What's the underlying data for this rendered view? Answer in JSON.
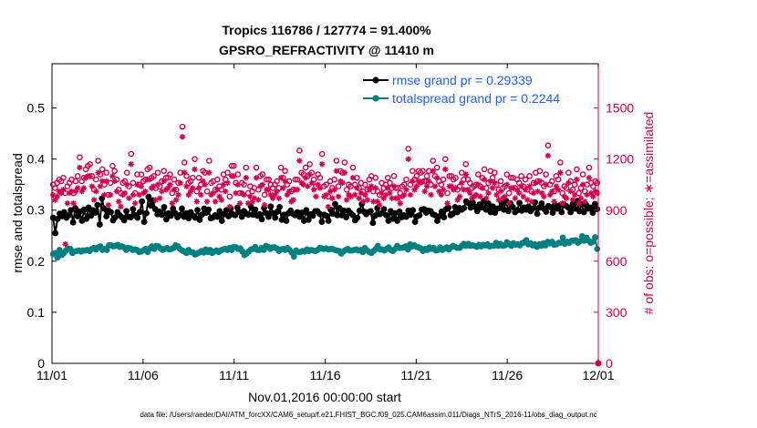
{
  "chart_data": {
    "type": "line",
    "title": "Tropics 116786 / 127774 = 91.400%",
    "subtitle": "GPSRO_REFRACTIVITY @ 11410 m",
    "xlabel": "Nov.01,2016 00:00:00 start",
    "ylabel": "rmse and totalspread",
    "y2label": "# of obs: o=possible; ∗=assimilated",
    "footnote": "data file: /Users/raeder/DAI/ATM_forcXX/CAM6_setup/f.e21.FHIST_BGC.f09_025.CAM6assim.011/Diags_NTrS_2016-11/obs_diag_output.nc",
    "x_tick_labels": [
      "11/01",
      "11/06",
      "11/11",
      "11/16",
      "11/21",
      "11/26",
      "12/01"
    ],
    "xlim": [
      0,
      30
    ],
    "ylim": [
      0,
      0.5866
    ],
    "y_ticks": [
      0,
      0.1,
      0.2,
      0.3,
      0.4,
      0.5
    ],
    "y_tick_labels": [
      "0",
      "0.1",
      "0.2",
      "0.3",
      "0.4",
      "0.5"
    ],
    "y2lim": [
      0,
      1760
    ],
    "y2_ticks": [
      0,
      300,
      600,
      900,
      1200,
      1500
    ],
    "y2_tick_labels": [
      "0",
      "300",
      "600",
      "900",
      "1200",
      "1500"
    ],
    "legend_location": "top-right",
    "series": [
      {
        "name": "rmse grand pr = 0.29339",
        "axis": "left",
        "color": "#000000",
        "marker": "dot",
        "values": [
          0.285,
          0.255,
          0.283,
          0.293,
          0.288,
          0.296,
          0.285,
          0.29,
          0.3,
          0.276,
          0.304,
          0.288,
          0.297,
          0.279,
          0.301,
          0.283,
          0.305,
          0.289,
          0.3,
          0.295,
          0.31,
          0.272,
          0.323,
          0.303,
          0.288,
          0.299,
          0.296,
          0.28,
          0.286,
          0.296,
          0.29,
          0.286,
          0.28,
          0.298,
          0.287,
          0.286,
          0.302,
          0.29,
          0.285,
          0.296,
          0.317,
          0.277,
          0.294,
          0.326,
          0.309,
          0.319,
          0.302,
          0.292,
          0.297,
          0.291,
          0.306,
          0.282,
          0.294,
          0.289,
          0.303,
          0.294,
          0.286,
          0.29,
          0.303,
          0.287,
          0.294,
          0.284,
          0.296,
          0.289,
          0.285,
          0.3,
          0.281,
          0.291,
          0.303,
          0.295,
          0.301,
          0.284,
          0.286,
          0.29,
          0.287,
          0.298,
          0.279,
          0.292,
          0.3,
          0.288,
          0.303,
          0.292,
          0.29,
          0.305,
          0.296,
          0.287,
          0.298,
          0.293,
          0.291,
          0.308,
          0.291,
          0.301,
          0.289,
          0.292,
          0.282,
          0.304,
          0.294,
          0.287,
          0.307,
          0.294,
          0.285,
          0.297,
          0.306,
          0.281,
          0.291,
          0.279,
          0.294,
          0.299,
          0.293,
          0.29,
          0.296,
          0.287,
          0.295,
          0.279,
          0.3,
          0.281,
          0.292,
          0.289,
          0.298,
          0.298,
          0.293,
          0.277,
          0.291,
          0.289,
          0.279,
          0.301,
          0.293,
          0.312,
          0.29,
          0.304,
          0.29,
          0.299,
          0.286,
          0.299,
          0.294,
          0.29,
          0.28,
          0.285,
          0.299,
          0.312,
          0.297,
          0.292,
          0.296,
          0.298,
          0.275,
          0.289,
          0.304,
          0.292,
          0.294,
          0.302,
          0.29,
          0.279,
          0.298,
          0.283,
          0.294,
          0.279,
          0.297,
          0.286,
          0.29,
          0.287,
          0.299,
          0.291,
          0.3,
          0.277,
          0.288,
          0.29,
          0.301,
          0.302,
          0.295,
          0.299,
          0.298,
          0.292,
          0.29,
          0.279,
          0.288,
          0.297,
          0.286,
          0.302,
          0.305,
          0.29,
          0.293,
          0.306,
          0.296,
          0.304,
          0.301,
          0.304,
          0.317,
          0.314,
          0.305,
          0.315,
          0.306,
          0.298,
          0.311,
          0.305,
          0.318,
          0.301,
          0.313,
          0.296,
          0.307,
          0.295,
          0.303,
          0.304,
          0.313,
          0.301,
          0.318,
          0.298,
          0.313,
          0.306,
          0.296,
          0.3,
          0.314,
          0.299,
          0.305,
          0.301,
          0.307,
          0.298,
          0.303,
          0.315,
          0.293,
          0.305,
          0.313,
          0.303,
          0.297,
          0.308,
          0.306,
          0.295,
          0.31,
          0.303,
          0.309,
          0.296,
          0.312,
          0.308,
          0.305,
          0.296,
          0.312,
          0.303,
          0.318,
          0.298,
          0.312,
          0.296,
          0.31,
          0.303,
          0.305,
          0.295,
          0.312,
          0.302
        ]
      },
      {
        "name": "totalspread grand pr = 0.2244",
        "axis": "left",
        "color": "#008080",
        "marker": "dot",
        "values": [
          0.214,
          0.216,
          0.207,
          0.222,
          0.212,
          0.216,
          0.221,
          0.225,
          0.224,
          0.216,
          0.219,
          0.22,
          0.221,
          0.219,
          0.221,
          0.221,
          0.222,
          0.22,
          0.224,
          0.226,
          0.223,
          0.227,
          0.229,
          0.222,
          0.224,
          0.222,
          0.231,
          0.231,
          0.229,
          0.23,
          0.232,
          0.228,
          0.229,
          0.227,
          0.222,
          0.226,
          0.225,
          0.222,
          0.223,
          0.222,
          0.218,
          0.219,
          0.221,
          0.224,
          0.218,
          0.225,
          0.229,
          0.224,
          0.23,
          0.229,
          0.225,
          0.222,
          0.224,
          0.226,
          0.223,
          0.224,
          0.226,
          0.231,
          0.229,
          0.224,
          0.221,
          0.219,
          0.216,
          0.222,
          0.218,
          0.217,
          0.213,
          0.215,
          0.217,
          0.22,
          0.217,
          0.223,
          0.218,
          0.222,
          0.216,
          0.219,
          0.221,
          0.218,
          0.221,
          0.223,
          0.224,
          0.222,
          0.226,
          0.222,
          0.228,
          0.227,
          0.224,
          0.225,
          0.219,
          0.212,
          0.215,
          0.219,
          0.223,
          0.224,
          0.228,
          0.222,
          0.222,
          0.226,
          0.222,
          0.23,
          0.228,
          0.224,
          0.227,
          0.227,
          0.225,
          0.22,
          0.223,
          0.224,
          0.222,
          0.226,
          0.222,
          0.217,
          0.209,
          0.221,
          0.218,
          0.218,
          0.22,
          0.219,
          0.223,
          0.22,
          0.222,
          0.221,
          0.22,
          0.222,
          0.226,
          0.225,
          0.224,
          0.225,
          0.223,
          0.224,
          0.224,
          0.222,
          0.221,
          0.22,
          0.215,
          0.219,
          0.222,
          0.224,
          0.221,
          0.221,
          0.222,
          0.223,
          0.221,
          0.222,
          0.218,
          0.226,
          0.221,
          0.218,
          0.216,
          0.22,
          0.224,
          0.23,
          0.223,
          0.223,
          0.221,
          0.224,
          0.227,
          0.222,
          0.22,
          0.224,
          0.23,
          0.226,
          0.226,
          0.227,
          0.229,
          0.223,
          0.233,
          0.229,
          0.231,
          0.228,
          0.227,
          0.225,
          0.22,
          0.224,
          0.222,
          0.227,
          0.224,
          0.226,
          0.221,
          0.222,
          0.227,
          0.222,
          0.225,
          0.227,
          0.223,
          0.227,
          0.23,
          0.228,
          0.226,
          0.226,
          0.23,
          0.234,
          0.23,
          0.234,
          0.23,
          0.231,
          0.23,
          0.228,
          0.232,
          0.229,
          0.232,
          0.231,
          0.233,
          0.229,
          0.23,
          0.23,
          0.236,
          0.23,
          0.234,
          0.23,
          0.231,
          0.237,
          0.233,
          0.23,
          0.235,
          0.232,
          0.233,
          0.231,
          0.235,
          0.237,
          0.241,
          0.233,
          0.235,
          0.231,
          0.233,
          0.228,
          0.233,
          0.23,
          0.235,
          0.231,
          0.238,
          0.235,
          0.238,
          0.232,
          0.233,
          0.236,
          0.236,
          0.246,
          0.234,
          0.238,
          0.236,
          0.24,
          0.24,
          0.241,
          0.236,
          0.239,
          0.249,
          0.24,
          0.246,
          0.24,
          0.236,
          0.238,
          0.247,
          0.224
        ]
      },
      {
        "name": "possible",
        "axis": "right",
        "color": "#d4004f",
        "marker": "circle",
        "values": [
          1050,
          1030,
          1060,
          1080,
          1070,
          1090,
          1000,
          1040,
          1060,
          1080,
          1000,
          1070,
          1100,
          1210,
          1070,
          1090,
          1140,
          1160,
          1170,
          1100,
          1020,
          1080,
          1190,
          1110,
          1140,
          1050,
          1120,
          990,
          1060,
          1160,
          1130,
          1080,
          1020,
          1000,
          1060,
          1070,
          1120,
          1040,
          1230,
          1060,
          1000,
          1110,
          1050,
          1110,
          1070,
          1080,
          1140,
          1150,
          1090,
          1100,
          1030,
          1120,
          1040,
          1070,
          1130,
          1090,
          1090,
          1110,
          1000,
          1080,
          1020,
          1060,
          1120,
          1390,
          1180,
          1100,
          1060,
          1070,
          1090,
          1200,
          1010,
          1090,
          1050,
          1130,
          1120,
          1010,
          1190,
          1060,
          1070,
          1020,
          1080,
          1040,
          1020,
          1110,
          1080,
          1120,
          980,
          1160,
          1160,
          1060,
          1110,
          1000,
          1060,
          1050,
          1150,
          1000,
          1040,
          1010,
          1030,
          1150,
          1020,
          1100,
          1110,
          990,
          1080,
          1080,
          1050,
          1030,
          1050,
          1070,
          1030,
          1150,
          1090,
          1130,
          1050,
          1070,
          1010,
          1020,
          1080,
          1080,
          1250,
          1120,
          1110,
          1150,
          1100,
          1170,
          1120,
          1080,
          1040,
          1110,
          1090,
          1230,
          1040,
          1050,
          980,
          1070,
          1030,
          1080,
          1190,
          1040,
          1130,
          1120,
          1180,
          1020,
          1050,
          1040,
          1150,
          1050,
          1090,
          1030,
          1060,
          1010,
          1050,
          1020,
          1080,
          1100,
          1010,
          1090,
          1010,
          990,
          1060,
          1030,
          1050,
          1090,
          1060,
          1030,
          1100,
          1030,
          1030,
          1000,
          1040,
          1050,
          1080,
          1260,
          1050,
          1130,
          1080,
          1100,
          1130,
          1120,
          1130,
          1070,
          1100,
          1130,
          1050,
          1190,
          1100,
          1150,
          1070,
          1050,
          1080,
          1200,
          1000,
          1100,
          1100,
          1080,
          1090,
          1020,
          1040,
          1120,
          1080,
          1170,
          1080,
          1060,
          1030,
          1040,
          1050,
          1110,
          1040,
          1090,
          1140,
          1030,
          1060,
          1130,
          1090,
          1120,
          1050,
          1020,
          1070,
          1030,
          1040,
          1110,
          1000,
          1090,
          1090,
          1030,
          1080,
          1060,
          1100,
          1040,
          1080,
          1020,
          1100,
          1010,
          1060,
          1120,
          1070,
          1130,
          1060,
          1040,
          1110,
          1280,
          1050,
          1070,
          1010,
          1100,
          1080,
          1180,
          1000,
          1040,
          1030,
          1120,
          1070,
          1020,
          1050,
          1140,
          1000,
          1030,
          1110,
          1010,
          1050,
          1150,
          1060,
          1040,
          1070,
          1060
        ]
      },
      {
        "name": "assimilated",
        "axis": "right",
        "color": "#d4004f",
        "marker": "asterisk",
        "values": [
          990,
          960,
          980,
          1010,
          1000,
          1020,
          700,
          940,
          1000,
          1010,
          940,
          1010,
          1030,
          1150,
          1010,
          1030,
          1090,
          1100,
          1100,
          1040,
          960,
          1010,
          1120,
          1040,
          1070,
          990,
          1070,
          930,
          990,
          1100,
          1070,
          1010,
          950,
          920,
          990,
          1000,
          1050,
          970,
          1170,
          990,
          940,
          1050,
          990,
          1040,
          1000,
          1010,
          1080,
          1080,
          1030,
          1040,
          960,
          1050,
          970,
          1010,
          1070,
          1020,
          1030,
          1050,
          940,
          1020,
          960,
          990,
          1060,
          1330,
          1120,
          1040,
          990,
          1010,
          1030,
          1140,
          950,
          1030,
          990,
          1070,
          1050,
          950,
          1120,
          990,
          1000,
          950,
          1020,
          980,
          960,
          1050,
          1010,
          1060,
          920,
          1100,
          1100,
          1000,
          1050,
          940,
          1000,
          990,
          1090,
          940,
          980,
          950,
          970,
          1090,
          960,
          1040,
          1050,
          930,
          1020,
          1020,
          990,
          970,
          990,
          1010,
          970,
          1090,
          1030,
          1070,
          990,
          1010,
          950,
          960,
          1020,
          1020,
          1190,
          1060,
          1050,
          1090,
          1040,
          1110,
          1060,
          1020,
          980,
          1050,
          1030,
          1170,
          980,
          990,
          920,
          1010,
          970,
          1020,
          1130,
          980,
          1070,
          1060,
          1120,
          960,
          990,
          980,
          1090,
          990,
          1030,
          970,
          1000,
          950,
          990,
          960,
          1020,
          1040,
          950,
          1030,
          950,
          930,
          1000,
          970,
          990,
          1030,
          1000,
          970,
          1040,
          970,
          970,
          940,
          980,
          990,
          1020,
          1200,
          990,
          1070,
          1020,
          1040,
          1070,
          1060,
          1070,
          1010,
          1040,
          1070,
          990,
          1130,
          1040,
          1090,
          1010,
          990,
          1020,
          1140,
          940,
          1040,
          1040,
          1020,
          1030,
          960,
          980,
          1060,
          1020,
          1110,
          1020,
          1000,
          970,
          980,
          990,
          1050,
          980,
          1030,
          1080,
          970,
          1000,
          1070,
          1030,
          1060,
          990,
          960,
          1010,
          970,
          980,
          1050,
          940,
          1030,
          1030,
          970,
          1020,
          1000,
          1040,
          980,
          1020,
          960,
          1040,
          950,
          1000,
          1060,
          1010,
          1070,
          1000,
          980,
          1050,
          1220,
          990,
          1010,
          950,
          1040,
          1020,
          1120,
          940,
          980,
          970,
          1060,
          1010,
          960,
          990,
          1080,
          940,
          970,
          1050,
          950,
          990,
          1090,
          1000,
          980,
          1010,
          1000
        ]
      }
    ]
  },
  "colors": {
    "left_axis": "#000000",
    "right_axis": "#d4004f",
    "legend_text": "#1f5fff"
  }
}
